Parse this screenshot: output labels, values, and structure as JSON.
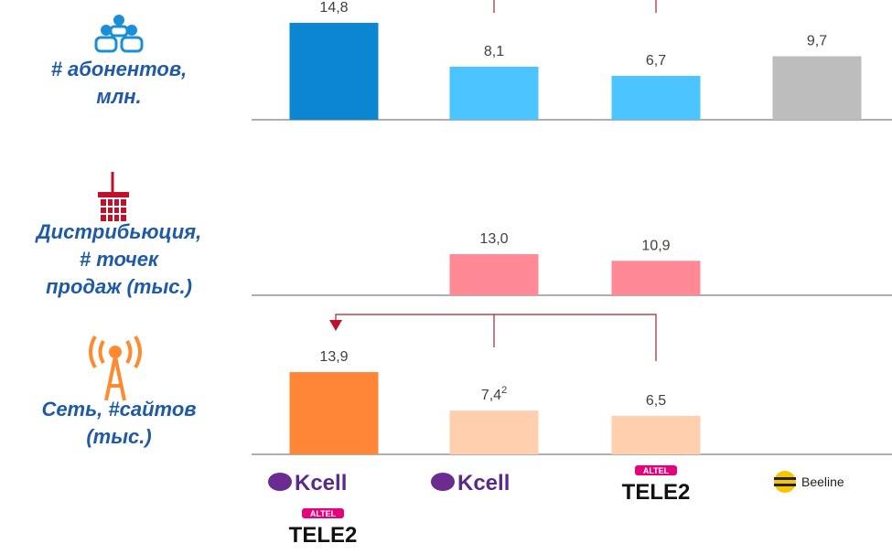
{
  "chart_data": [
    {
      "type": "bar",
      "title_lines": [
        "# абонентов,",
        "млн."
      ],
      "values": [
        14.8,
        8.1,
        6.7,
        9.7
      ],
      "value_labels": [
        "14,8",
        "8,1",
        "6,7",
        "9,7"
      ],
      "colors": [
        "#0a87d0",
        "#4cc4ff",
        "#4cc4ff",
        "#bdbdbd"
      ]
    },
    {
      "type": "bar",
      "title_lines": [
        "Дистрибьюция,",
        "# точек",
        "продаж (тыс.)"
      ],
      "values": [
        null,
        13.0,
        10.9,
        null
      ],
      "value_labels": [
        null,
        "13,0",
        "10,9",
        null
      ],
      "colors": [
        "#ff8a96",
        "#ff8a96",
        "#ff8a96",
        "#ff8a96"
      ]
    },
    {
      "type": "bar",
      "title_lines": [
        "Сеть, #сайтов",
        "(тыс.)"
      ],
      "values": [
        13.9,
        7.4,
        6.5,
        null
      ],
      "value_labels": [
        "13,9",
        "7,4",
        "6,5",
        null
      ],
      "value_notes": [
        null,
        "2",
        null,
        null
      ],
      "colors": [
        "#ff8636",
        "#ffcfae",
        "#ffcfae",
        "#ffcfae"
      ]
    }
  ],
  "logos": {
    "kcell": "Kcell",
    "altel": "ALTEL",
    "tele2": "TELE2",
    "beeline": "Beeline"
  }
}
